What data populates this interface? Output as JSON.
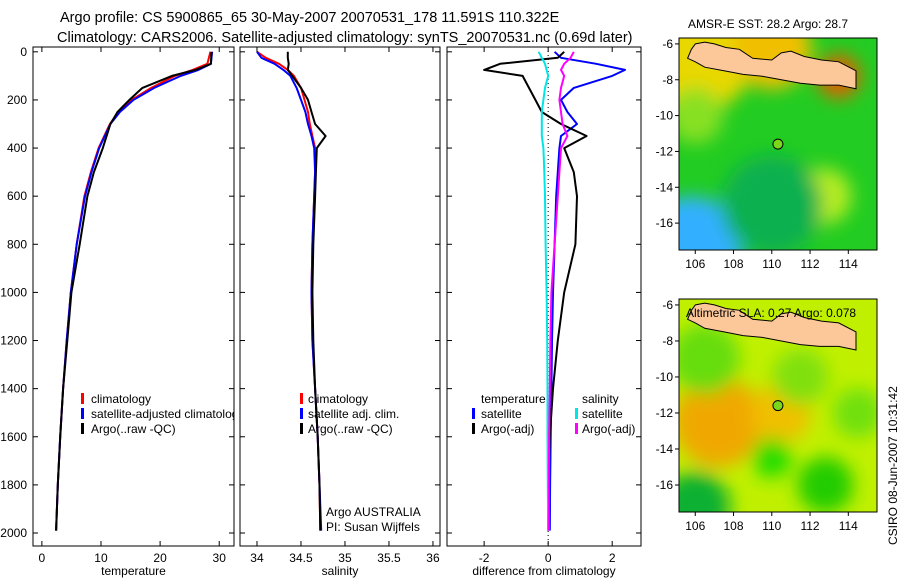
{
  "title": {
    "line1": "Argo profile: CS 5900865_65 30-May-2007 20070531_178 11.591S 110.322E",
    "line2": "Climatology: CARS2006. Satellite-adjusted climatology: synTS_20070531.nc (0.69d later)"
  },
  "credit": "CSIRO 08-Jun-2007 10:31:42",
  "colors": {
    "climatology": "#ff0000",
    "satellite": "#0000ff",
    "argo": "#000000",
    "sal_satellite": "#00e5e5",
    "sal_argo": "#ff00ff"
  },
  "chart_data": [
    {
      "type": "line",
      "id": "temperature",
      "xlabel": "temperature",
      "ylabel": "",
      "xlim": [
        -1.5,
        32.5
      ],
      "ylim": [
        2054,
        -20
      ],
      "xticks": [
        0,
        10,
        20,
        30
      ],
      "yticks": [
        0,
        200,
        400,
        600,
        800,
        1000,
        1200,
        1400,
        1600,
        1800,
        2000
      ],
      "depth": [
        0,
        50,
        75,
        100,
        150,
        200,
        250,
        300,
        400,
        500,
        600,
        800,
        1000,
        1200,
        1400,
        1600,
        1800,
        1990
      ],
      "legend": [
        "climatology",
        "satellite-adjusted climatology",
        "Argo(..raw -QC)"
      ],
      "series": [
        {
          "name": "climatology",
          "color": "climatology",
          "values": [
            28.5,
            28.0,
            25.5,
            22.5,
            18.5,
            15.2,
            13.0,
            11.5,
            9.6,
            8.3,
            7.2,
            5.9,
            4.9,
            4.2,
            3.6,
            3.1,
            2.7,
            2.4
          ]
        },
        {
          "name": "satellite-adjusted climatology",
          "color": "satellite",
          "values": [
            28.8,
            28.6,
            26.5,
            23.5,
            19.0,
            15.5,
            13.2,
            11.6,
            9.7,
            8.4,
            7.3,
            5.9,
            4.9,
            4.2,
            3.6,
            3.1,
            2.7,
            2.4
          ]
        },
        {
          "name": "Argo(..raw -QC)",
          "color": "argo",
          "values": [
            28.7,
            28.6,
            26.0,
            22.0,
            17.0,
            14.8,
            12.8,
            11.6,
            10.3,
            8.8,
            7.7,
            6.4,
            5.0,
            4.3,
            3.6,
            3.1,
            2.7,
            2.4
          ]
        }
      ]
    },
    {
      "type": "line",
      "id": "salinity",
      "xlabel": "salinity",
      "xlim": [
        33.807,
        36.08
      ],
      "ylim": [
        2054,
        -20
      ],
      "xticks": [
        34,
        34.5,
        35,
        35.5,
        36
      ],
      "yticks": [
        0,
        200,
        400,
        600,
        800,
        1000,
        1200,
        1400,
        1600,
        1800,
        2000
      ],
      "depth": [
        0,
        25,
        50,
        75,
        100,
        150,
        200,
        250,
        300,
        350,
        400,
        500,
        600,
        800,
        1000,
        1200,
        1400,
        1600,
        1800,
        1990
      ],
      "legend": [
        "climatology",
        "satellite adj. clim.",
        "Argo(..raw -QC)"
      ],
      "annotation": [
        "Argo AUSTRALIA",
        "PI: Susan Wijffels"
      ],
      "series": [
        {
          "name": "climatology",
          "color": "climatology",
          "values": [
            34.0,
            34.1,
            34.25,
            34.35,
            34.42,
            34.5,
            34.54,
            34.58,
            34.6,
            34.63,
            34.66,
            34.66,
            34.65,
            34.63,
            34.62,
            34.63,
            34.66,
            34.69,
            34.71,
            34.72
          ]
        },
        {
          "name": "satellite adj. clim.",
          "color": "satellite",
          "values": [
            34.0,
            34.05,
            34.2,
            34.3,
            34.38,
            34.45,
            34.5,
            34.55,
            34.58,
            34.62,
            34.65,
            34.66,
            34.65,
            34.63,
            34.62,
            34.63,
            34.66,
            34.69,
            34.71,
            34.73
          ]
        },
        {
          "name": "Argo(..raw -QC)",
          "color": "argo",
          "values": [
            34.35,
            34.35,
            34.36,
            34.35,
            34.4,
            34.5,
            34.58,
            34.62,
            34.66,
            34.78,
            34.68,
            34.67,
            34.66,
            34.64,
            34.63,
            34.64,
            34.66,
            34.69,
            34.71,
            34.72
          ]
        }
      ]
    },
    {
      "type": "line",
      "id": "difference",
      "xlabel": "difference from climatology",
      "xlim": [
        -3.16,
        2.9
      ],
      "ylim": [
        2054,
        -20
      ],
      "xticks": [
        -2,
        0,
        2
      ],
      "yticks": [
        0,
        200,
        400,
        600,
        800,
        1000,
        1200,
        1400,
        1600,
        1800,
        2000
      ],
      "depth": [
        0,
        25,
        50,
        75,
        100,
        150,
        200,
        250,
        300,
        350,
        400,
        500,
        600,
        800,
        1000,
        1200,
        1400,
        1600,
        1800,
        1990
      ],
      "legend_headers": [
        "temperature",
        "salinity"
      ],
      "legend": [
        "satellite",
        "Argo(-adj)",
        "satellite",
        "Argo(-adj)"
      ],
      "series": [
        {
          "name": "temperature satellite",
          "color": "satellite",
          "values": [
            0.2,
            0.4,
            1.5,
            2.4,
            2.0,
            0.8,
            0.4,
            0.6,
            0.9,
            0.4,
            0.35,
            0.3,
            0.25,
            0.2,
            0.15,
            0.12,
            0.1,
            0.08,
            0.06,
            0.05
          ]
        },
        {
          "name": "temperature Argo(-adj)",
          "color": "argo",
          "values": [
            0.5,
            0.3,
            -1.5,
            -2.0,
            -0.8,
            -0.6,
            -0.4,
            -0.2,
            0.4,
            1.2,
            0.5,
            0.8,
            0.9,
            0.85,
            0.5,
            0.3,
            0.15,
            0.05,
            0.0,
            0.0
          ]
        },
        {
          "name": "salinity satellite",
          "color": "sal_satellite",
          "values": [
            -0.3,
            -0.2,
            -0.1,
            -0.05,
            0.0,
            -0.1,
            -0.15,
            -0.2,
            -0.2,
            -0.2,
            -0.15,
            -0.12,
            -0.1,
            -0.08,
            -0.05,
            -0.03,
            -0.02,
            -0.02,
            -0.01,
            0.0
          ]
        },
        {
          "name": "salinity Argo(-adj)",
          "color": "sal_argo",
          "values": [
            0.8,
            0.7,
            0.5,
            0.4,
            0.5,
            0.4,
            0.35,
            0.4,
            0.45,
            0.6,
            0.4,
            0.35,
            0.3,
            0.2,
            0.1,
            0.07,
            0.05,
            0.03,
            0.02,
            0.02
          ]
        }
      ]
    },
    {
      "type": "heatmap",
      "id": "sst-map",
      "title": "AMSR-E SST: 28.2 Argo: 28.7",
      "xlim": [
        105.15,
        115.5
      ],
      "ylim": [
        -17.5,
        -5.67
      ],
      "xticks": [
        106,
        108,
        110,
        112,
        114
      ],
      "yticks": [
        -6,
        -8,
        -10,
        -12,
        -14,
        -16
      ],
      "argo_position": {
        "lon": 110.322,
        "lat": -11.591
      }
    },
    {
      "type": "heatmap",
      "id": "sla-map",
      "title": "Altimetric SLA: 0.27 Argo: 0.078",
      "xlim": [
        105.15,
        115.5
      ],
      "ylim": [
        -17.5,
        -5.67
      ],
      "xticks": [
        106,
        108,
        110,
        112,
        114
      ],
      "yticks": [
        -6,
        -8,
        -10,
        -12,
        -14,
        -16
      ],
      "argo_position": {
        "lon": 110.322,
        "lat": -11.591
      }
    }
  ]
}
